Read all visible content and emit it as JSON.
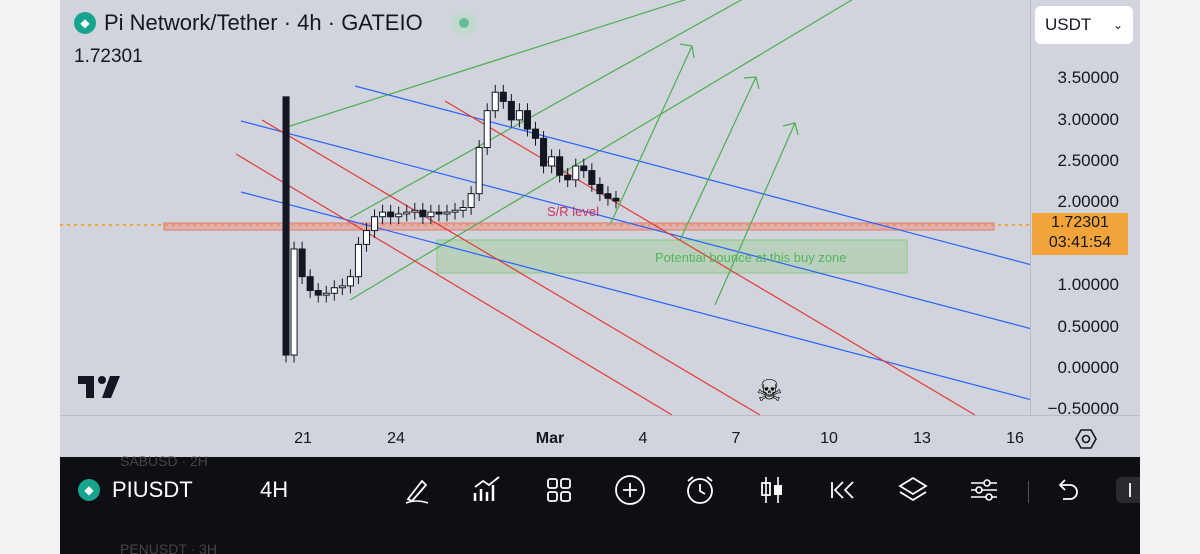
{
  "header": {
    "title": "Pi Network/Tether · 4h · GATEIO",
    "last_price": "1.72301"
  },
  "currency_select": {
    "value": "USDT"
  },
  "price_axis": {
    "ticks": [
      "3.50000",
      "3.00000",
      "2.50000",
      "2.00000",
      "1.00000",
      "0.50000",
      "0.00000",
      "−0.50000"
    ],
    "current_price": "1.72301",
    "countdown": "03:41:54"
  },
  "time_axis": {
    "labels": [
      "21",
      "24",
      "Mar",
      "4",
      "7",
      "10",
      "13",
      "16"
    ]
  },
  "annotations": {
    "sr_level": "S/R level",
    "buy_zone": "Potential bounce at this buy zone"
  },
  "bottom_bar": {
    "symbol": "PIUSDT",
    "interval": "4H",
    "ghost_above": "SABUSD · 2H",
    "ghost_below": "PENUSDT · 3H"
  },
  "colors": {
    "background": "#d1d4dc",
    "red_channel": "#e53935",
    "blue_channel": "#2962ff",
    "green_channel": "#4caf50",
    "price_line": "#f2a33a",
    "accent": "#16a48f"
  },
  "chart_data": {
    "type": "candlestick",
    "symbol": "Pi Network/Tether",
    "timeframe": "4h",
    "exchange": "GATEIO",
    "last": 1.72301,
    "ylim": [
      -0.6,
      3.9
    ],
    "x_labels": [
      "21",
      "24",
      "Mar",
      "4",
      "7",
      "10",
      "13",
      "16"
    ],
    "candles_close_approx": [
      0.05,
      1.2,
      0.9,
      0.75,
      0.7,
      0.72,
      0.78,
      0.8,
      0.9,
      1.25,
      1.4,
      1.55,
      1.6,
      1.55,
      1.58,
      1.6,
      1.62,
      1.55,
      1.6,
      1.58,
      1.6,
      1.62,
      1.65,
      1.8,
      2.3,
      2.7,
      2.9,
      2.8,
      2.6,
      2.7,
      2.5,
      2.4,
      2.1,
      2.2,
      2.0,
      1.95,
      2.1,
      2.05,
      1.9,
      1.8,
      1.75,
      1.72
    ]
  }
}
